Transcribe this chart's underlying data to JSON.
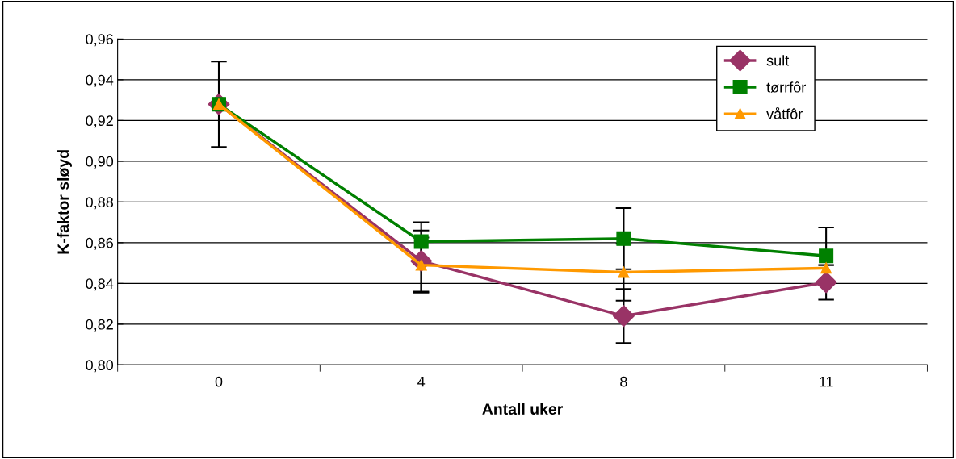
{
  "chart_data": {
    "type": "line",
    "xlabel": "Antall uker",
    "ylabel": "K-faktor sløyd",
    "categories": [
      "0",
      "4",
      "8",
      "11"
    ],
    "series": [
      {
        "name": "sult",
        "color": "#993366",
        "marker": "diamond",
        "values": [
          0.928,
          0.851,
          0.824,
          0.8405
        ],
        "errors": [
          null,
          0.015,
          0.0133,
          0.0085
        ]
      },
      {
        "name": "tørrfôr",
        "color": "#008000",
        "marker": "square",
        "values": [
          0.928,
          0.8605,
          0.862,
          0.8535
        ],
        "errors": [
          0.021,
          0.0095,
          0.015,
          0.014
        ]
      },
      {
        "name": "våtfôr",
        "color": "#ff9900",
        "marker": "triangle",
        "values": [
          0.928,
          0.849,
          0.8455,
          0.8475
        ],
        "errors": [
          null,
          0.0135,
          0.014,
          null
        ]
      }
    ],
    "ylim": [
      0.8,
      0.96
    ],
    "yticks": [
      {
        "value": 0.8,
        "label": "0,80"
      },
      {
        "value": 0.82,
        "label": "0,82"
      },
      {
        "value": 0.84,
        "label": "0,84"
      },
      {
        "value": 0.86,
        "label": "0,86"
      },
      {
        "value": 0.88,
        "label": "0,88"
      },
      {
        "value": 0.9,
        "label": "0,90"
      },
      {
        "value": 0.92,
        "label": "0,92"
      },
      {
        "value": 0.94,
        "label": "0,94"
      },
      {
        "value": 0.96,
        "label": "0,96"
      }
    ],
    "grid": "y",
    "legend": "top right"
  }
}
